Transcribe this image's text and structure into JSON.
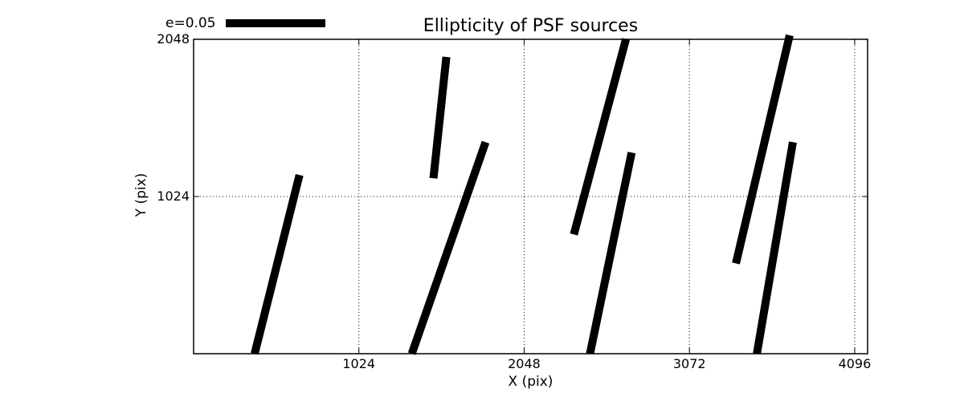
{
  "chart_data": {
    "type": "line",
    "subtype": "psf-ellipticity-whisker-plot",
    "title": "Ellipticity of PSF sources",
    "xlabel": "X (pix)",
    "ylabel": "Y (pix)",
    "xlim": [
      0,
      4176
    ],
    "ylim": [
      0,
      2048
    ],
    "xticks": [
      1024,
      2048,
      3072,
      4096
    ],
    "yticks": [
      1024,
      2048
    ],
    "grid": {
      "visible": true,
      "style": "dotted",
      "color": "#000000"
    },
    "legend": {
      "label": "e=0.05",
      "position": "top-left",
      "line_color": "#000000"
    },
    "line_color": "#000000",
    "background_color": "#ffffff",
    "segments": [
      {
        "x1": 378,
        "y1": 0,
        "x2": 656,
        "y2": 1164
      },
      {
        "x1": 1486,
        "y1": 1143,
        "x2": 1566,
        "y2": 1933
      },
      {
        "x1": 1352,
        "y1": 0,
        "x2": 1809,
        "y2": 1378
      },
      {
        "x1": 2356,
        "y1": 777,
        "x2": 2679,
        "y2": 2050
      },
      {
        "x1": 2456,
        "y1": 0,
        "x2": 2714,
        "y2": 1310
      },
      {
        "x1": 3360,
        "y1": 588,
        "x2": 3693,
        "y2": 2074
      },
      {
        "x1": 3490,
        "y1": 0,
        "x2": 3713,
        "y2": 1378
      }
    ]
  }
}
